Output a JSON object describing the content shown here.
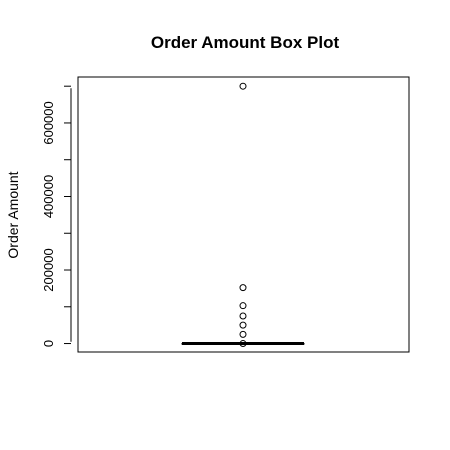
{
  "chart_data": {
    "type": "box",
    "title": "Order Amount Box Plot",
    "xlabel": "",
    "ylabel": "Order Amount",
    "ylim": [
      -23000,
      725000
    ],
    "yticks": [
      0,
      100000,
      200000,
      300000,
      400000,
      500000,
      600000,
      700000
    ],
    "ytick_labels": [
      {
        "value": 0,
        "label": "0"
      },
      {
        "value": 200000,
        "label": "200000"
      },
      {
        "value": 400000,
        "label": "400000"
      },
      {
        "value": 600000,
        "label": "600000"
      }
    ],
    "box": {
      "min": 0,
      "q1": 0,
      "median": 0,
      "q3": 0,
      "max": 0
    },
    "outliers": [
      700000,
      152000,
      103000,
      75000,
      50000,
      25000,
      0
    ],
    "grid": false,
    "legend": "none"
  }
}
